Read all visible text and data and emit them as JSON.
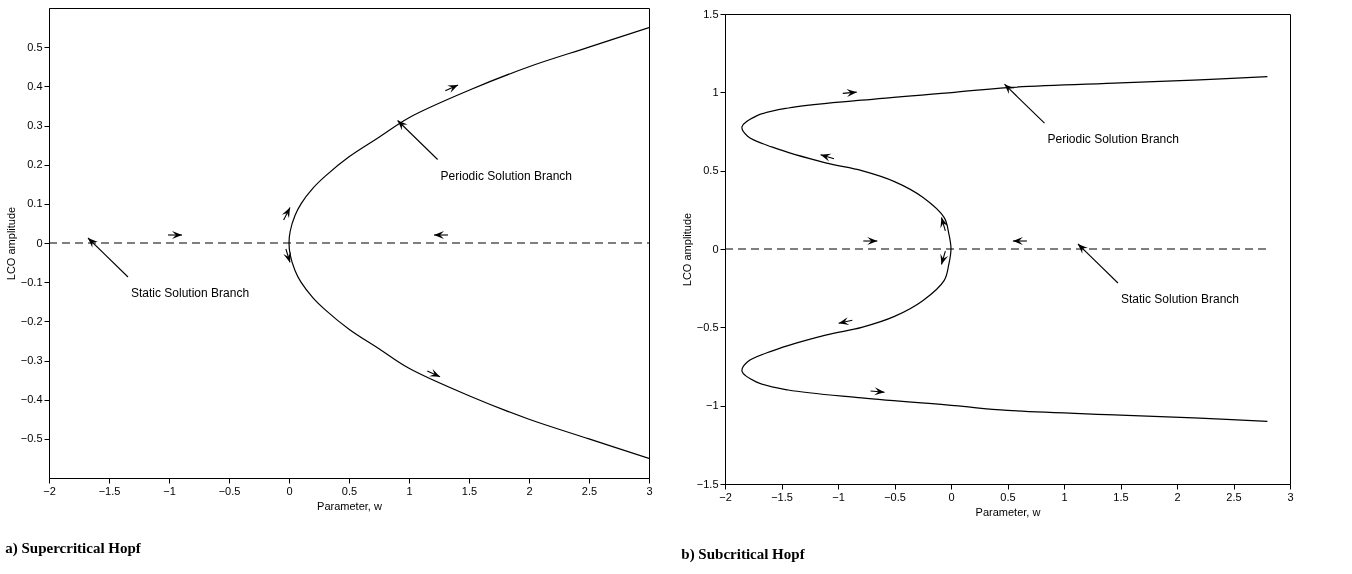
{
  "chart_data": [
    {
      "type": "line",
      "title": "a) Supercritical Hopf",
      "xlabel": "Parameter, w",
      "ylabel": "LCO amplitude",
      "xlim": [
        -2,
        3
      ],
      "xticks": [
        -2,
        -1.5,
        -1,
        -0.5,
        0,
        0.5,
        1,
        1.5,
        2,
        2.5,
        3
      ],
      "ylim": [
        -0.6,
        0.6
      ],
      "yticks": [
        -0.5,
        -0.4,
        -0.3,
        -0.2,
        -0.1,
        0,
        0.1,
        0.2,
        0.3,
        0.4,
        0.5
      ],
      "series": [
        {
          "color": "#000000",
          "line_style": "dashed",
          "x": [
            -2,
            3
          ],
          "values": [
            0,
            0
          ]
        },
        {
          "color": "#000000",
          "line_style": "solid",
          "x": [
            3,
            2.5,
            2,
            1.5,
            1,
            0.75,
            0.5,
            0.3,
            0.2,
            0.1,
            0.05,
            0.01,
            0,
            0.01,
            0.05,
            0.1,
            0.2,
            0.3,
            0.5,
            0.75,
            1,
            1.5,
            2,
            2.5,
            3
          ],
          "values": [
            -0.55,
            -0.5,
            -0.45,
            -0.39,
            -0.32,
            -0.27,
            -0.22,
            -0.17,
            -0.14,
            -0.1,
            -0.07,
            -0.03,
            0,
            0.03,
            0.07,
            0.1,
            0.14,
            0.17,
            0.22,
            0.27,
            0.32,
            0.39,
            0.45,
            0.5,
            0.55
          ]
        }
      ],
      "annotations": [
        {
          "text": "Periodic Solution Branch",
          "x": 0.93,
          "y": 0.3
        },
        {
          "text": "Static Solution Branch",
          "x": -1.65,
          "y": 0
        }
      ]
    },
    {
      "type": "line",
      "title": "b) Subcritical Hopf",
      "xlabel": "Parameter, w",
      "ylabel": "LCO amplitude",
      "xlim": [
        -2,
        3
      ],
      "xticks": [
        -2,
        -1.5,
        -1,
        -0.5,
        0,
        0.5,
        1,
        1.5,
        2,
        2.5,
        3
      ],
      "ylim": [
        -1.5,
        1.5
      ],
      "yticks": [
        -1.5,
        -1,
        -0.5,
        0,
        0.5,
        1,
        1.5
      ],
      "series": [
        {
          "color": "#000000",
          "line_style": "dashed",
          "x": [
            -2,
            2.8
          ],
          "values": [
            0,
            0
          ]
        },
        {
          "color": "#000000",
          "line_style": "solid",
          "x": [
            2.8,
            2.2,
            1.5,
            0.5,
            0.03,
            -0.79,
            -1.44,
            -1.72,
            -1.85,
            -1.8,
            -1.58,
            -1.11,
            -0.79,
            -0.5,
            -0.25,
            -0.06,
            -0.02,
            0,
            -0.02,
            -0.06,
            -0.25,
            -0.5,
            -0.79,
            -1.11,
            -1.58,
            -1.8,
            -1.85,
            -1.72,
            -1.44,
            -0.79,
            0.03,
            0.5,
            1.5,
            2.2,
            2.8
          ],
          "values": [
            -1.1,
            -1.08,
            -1.06,
            -1.03,
            -1,
            -0.95,
            -0.9,
            -0.85,
            -0.78,
            -0.72,
            -0.65,
            -0.55,
            -0.5,
            -0.43,
            -0.33,
            -0.2,
            -0.1,
            0,
            0.1,
            0.2,
            0.33,
            0.43,
            0.5,
            0.55,
            0.65,
            0.72,
            0.78,
            0.85,
            0.9,
            0.95,
            1,
            1.03,
            1.06,
            1.08,
            1.1
          ]
        }
      ],
      "annotations": [
        {
          "text": "Periodic Solution Branch",
          "x": 0.5,
          "y": 1.02
        },
        {
          "text": "Static Solution Branch",
          "x": 1.15,
          "y": 0
        }
      ]
    }
  ]
}
